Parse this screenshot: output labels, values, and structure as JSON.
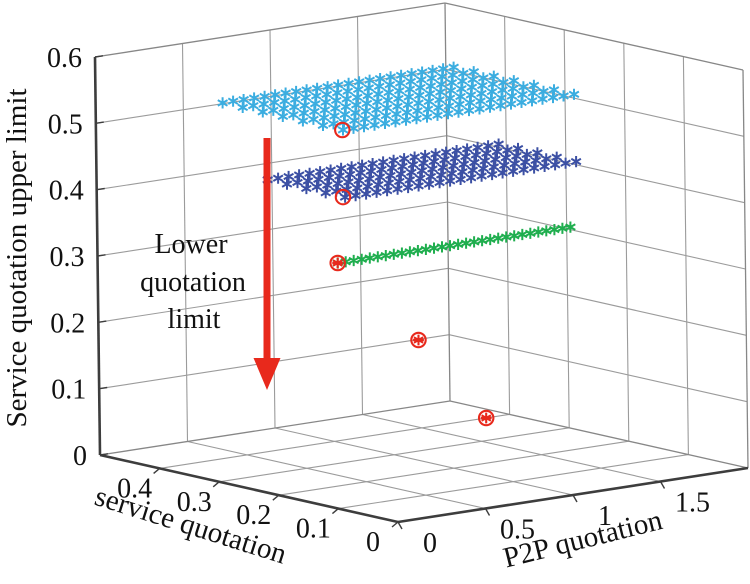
{
  "figure": {
    "background": "#ffffff",
    "annotation": {
      "line1": "Lower",
      "line2": "quotation",
      "line3": "limit"
    },
    "arrow": {
      "color": "#e8291c",
      "direction": "down"
    },
    "axes": {
      "x": {
        "label": "P2P quotation",
        "range": [
          0,
          2
        ],
        "tick_values": [
          0,
          0.5,
          1,
          1.5
        ],
        "tick_labels": [
          "0",
          "0.5",
          "1",
          "1.5"
        ]
      },
      "y": {
        "label": "service quotation",
        "range": [
          0,
          0.5
        ],
        "tick_values": [
          0,
          0.1,
          0.2,
          0.3,
          0.4
        ],
        "tick_labels": [
          "0",
          "0.1",
          "0.2",
          "0.3",
          "0.4"
        ]
      },
      "z": {
        "label": "Service quotation upper limit",
        "range": [
          0,
          0.6
        ],
        "tick_values": [
          0,
          0.1,
          0.2,
          0.3,
          0.4,
          0.5,
          0.6
        ],
        "tick_labels": [
          "0",
          "0.1",
          "0.2",
          "0.3",
          "0.4",
          "0.5",
          "0.6"
        ]
      }
    },
    "grid": true,
    "colors": {
      "grid": "#9b9b9b",
      "box_back_edges": "#878787",
      "box_front_edges": "#3d3d3d",
      "text": "#111111"
    }
  },
  "chart_data": {
    "type": "scatter",
    "projection": "3d",
    "title": "",
    "xlabel": "P2P quotation",
    "ylabel": "service quotation",
    "zlabel": "Service quotation upper limit",
    "xlim": [
      0,
      2
    ],
    "ylim": [
      0,
      0.5
    ],
    "zlim": [
      0,
      0.6
    ],
    "series": [
      {
        "name": "upper-limit-plane-1",
        "marker": "asterisk",
        "color": "#3bade0",
        "z": 0.55,
        "x_min": 0.24,
        "x_max": 1.56,
        "cols": 23,
        "y_min": 0.155,
        "y_max": 0.357,
        "rows": 7
      },
      {
        "name": "upper-limit-plane-2",
        "marker": "asterisk",
        "color": "#3c50a4",
        "z": 0.45,
        "x_min": 0.23,
        "x_max": 1.55,
        "cols": 23,
        "y_min": 0.15,
        "y_max": 0.28,
        "rows": 5
      },
      {
        "name": "upper-limit-line-3",
        "marker": "asterisk",
        "color": "#1fae4e",
        "z": 0.35,
        "x_min": 0.21,
        "x_max": 1.54,
        "cols": 30,
        "y_min": 0.158,
        "y_max": 0.158,
        "rows": 1
      }
    ],
    "selected_points": {
      "name": "lower-quotation-limit-points",
      "marker": "circled-asterisk",
      "color": "#e8291c",
      "points": [
        {
          "x": 0.236,
          "y": 0.155,
          "z": 0.55,
          "style": "ring"
        },
        {
          "x": 0.225,
          "y": 0.152,
          "z": 0.45,
          "style": "ring"
        },
        {
          "x": 0.21,
          "y": 0.158,
          "z": 0.35,
          "style": "asterisk-ring"
        },
        {
          "x": 0.32,
          "y": 0.056,
          "z": 0.25,
          "style": "asterisk-ring"
        },
        {
          "x": 0.67,
          "y": 0.047,
          "z": 0.12,
          "style": "asterisk-ring"
        }
      ]
    }
  }
}
